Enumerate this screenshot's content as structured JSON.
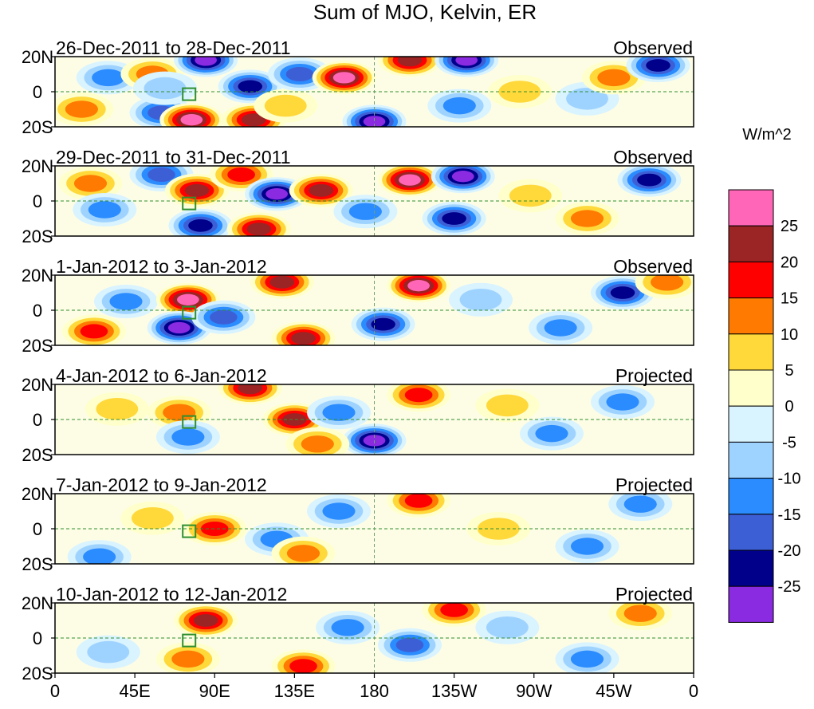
{
  "chart_data": {
    "type": "heatmap",
    "title": "Sum of MJO, Kelvin, ER",
    "colorbar": {
      "units": "W/m^2",
      "levels": [
        25,
        20,
        15,
        10,
        5,
        0,
        -5,
        -10,
        -15,
        -20,
        -25
      ],
      "level_labels": [
        "25",
        "20",
        "15",
        "10",
        "5",
        "0",
        "-5",
        "-10",
        "-15",
        "-20",
        "-25"
      ],
      "colors": [
        "#ff66b8",
        "#9b2424",
        "#ff0000",
        "#ff7a00",
        "#ffd83a",
        "#ffffcc",
        "#d9f3ff",
        "#9fd3ff",
        "#2b8cff",
        "#3d5fd6",
        "#00008b",
        "#8a2be2"
      ]
    },
    "x_axis": {
      "tick_labels": [
        "0",
        "45E",
        "90E",
        "135E",
        "180",
        "135W",
        "90W",
        "45W",
        "0"
      ],
      "range_deg_east": [
        0,
        360
      ]
    },
    "y_axis": {
      "tick_labels": [
        "20N",
        "0",
        "20S"
      ],
      "range_deg": [
        -20,
        20
      ]
    },
    "panels": [
      {
        "period": "26-Dec-2011 to 28-Dec-2011",
        "status": "Observed",
        "anomalies": [
          {
            "lon": 15,
            "lat": -10,
            "value": 12
          },
          {
            "lon": 30,
            "lat": 8,
            "value": -10
          },
          {
            "lon": 55,
            "lat": 10,
            "value": 14
          },
          {
            "lon": 60,
            "lat": -12,
            "value": -15
          },
          {
            "lon": 62,
            "lat": 2,
            "value": -6
          },
          {
            "lon": 77,
            "lat": -16,
            "value": 25
          },
          {
            "lon": 85,
            "lat": 18,
            "value": -26
          },
          {
            "lon": 110,
            "lat": 3,
            "value": -22
          },
          {
            "lon": 112,
            "lat": -16,
            "value": 22
          },
          {
            "lon": 130,
            "lat": -8,
            "value": 8
          },
          {
            "lon": 138,
            "lat": 10,
            "value": -18
          },
          {
            "lon": 163,
            "lat": 8,
            "value": 26
          },
          {
            "lon": 180,
            "lat": -17,
            "value": -26
          },
          {
            "lon": 200,
            "lat": 18,
            "value": 21
          },
          {
            "lon": 232,
            "lat": 18,
            "value": -27
          },
          {
            "lon": 228,
            "lat": -8,
            "value": -14
          },
          {
            "lon": 262,
            "lat": 0,
            "value": 7
          },
          {
            "lon": 300,
            "lat": -4,
            "value": -8
          },
          {
            "lon": 315,
            "lat": 8,
            "value": 14
          },
          {
            "lon": 340,
            "lat": 15,
            "value": -20
          }
        ]
      },
      {
        "period": "29-Dec-2011 to 31-Dec-2011",
        "status": "Observed",
        "anomalies": [
          {
            "lon": 20,
            "lat": 10,
            "value": 12
          },
          {
            "lon": 28,
            "lat": -5,
            "value": -12
          },
          {
            "lon": 60,
            "lat": 15,
            "value": -18
          },
          {
            "lon": 80,
            "lat": 6,
            "value": 21
          },
          {
            "lon": 82,
            "lat": -14,
            "value": -24
          },
          {
            "lon": 105,
            "lat": 15,
            "value": 16
          },
          {
            "lon": 115,
            "lat": -16,
            "value": 24
          },
          {
            "lon": 125,
            "lat": 4,
            "value": -27
          },
          {
            "lon": 150,
            "lat": 6,
            "value": 21
          },
          {
            "lon": 175,
            "lat": -6,
            "value": -14
          },
          {
            "lon": 200,
            "lat": 12,
            "value": 26
          },
          {
            "lon": 230,
            "lat": 14,
            "value": -28
          },
          {
            "lon": 225,
            "lat": -10,
            "value": -22
          },
          {
            "lon": 268,
            "lat": 3,
            "value": 6
          },
          {
            "lon": 300,
            "lat": -10,
            "value": 12
          },
          {
            "lon": 335,
            "lat": 12,
            "value": -22
          }
        ]
      },
      {
        "period": "1-Jan-2012 to 3-Jan-2012",
        "status": "Observed",
        "anomalies": [
          {
            "lon": 22,
            "lat": -12,
            "value": 18
          },
          {
            "lon": 40,
            "lat": 5,
            "value": -12
          },
          {
            "lon": 75,
            "lat": 6,
            "value": 26
          },
          {
            "lon": 70,
            "lat": -10,
            "value": -26
          },
          {
            "lon": 95,
            "lat": -4,
            "value": -18
          },
          {
            "lon": 128,
            "lat": 16,
            "value": 20
          },
          {
            "lon": 140,
            "lat": -16,
            "value": 22
          },
          {
            "lon": 185,
            "lat": -8,
            "value": -24
          },
          {
            "lon": 205,
            "lat": 14,
            "value": 26
          },
          {
            "lon": 240,
            "lat": 6,
            "value": -8
          },
          {
            "lon": 285,
            "lat": -10,
            "value": -14
          },
          {
            "lon": 320,
            "lat": 10,
            "value": -20
          },
          {
            "lon": 345,
            "lat": 16,
            "value": 12
          }
        ]
      },
      {
        "period": "4-Jan-2012 to 6-Jan-2012",
        "status": "Projected",
        "anomalies": [
          {
            "lon": 35,
            "lat": 6,
            "value": 8
          },
          {
            "lon": 70,
            "lat": 4,
            "value": 14
          },
          {
            "lon": 75,
            "lat": -10,
            "value": -14
          },
          {
            "lon": 110,
            "lat": 18,
            "value": 20
          },
          {
            "lon": 135,
            "lat": 0,
            "value": 22
          },
          {
            "lon": 160,
            "lat": 4,
            "value": -14
          },
          {
            "lon": 180,
            "lat": -12,
            "value": -25
          },
          {
            "lon": 148,
            "lat": -14,
            "value": 14
          },
          {
            "lon": 205,
            "lat": 14,
            "value": 16
          },
          {
            "lon": 255,
            "lat": 8,
            "value": 6
          },
          {
            "lon": 280,
            "lat": -8,
            "value": -10
          },
          {
            "lon": 320,
            "lat": 10,
            "value": -12
          }
        ]
      },
      {
        "period": "7-Jan-2012 to 9-Jan-2012",
        "status": "Projected",
        "anomalies": [
          {
            "lon": 25,
            "lat": -16,
            "value": -14
          },
          {
            "lon": 55,
            "lat": 6,
            "value": 8
          },
          {
            "lon": 90,
            "lat": 0,
            "value": 16
          },
          {
            "lon": 125,
            "lat": -6,
            "value": -12
          },
          {
            "lon": 140,
            "lat": -14,
            "value": 12
          },
          {
            "lon": 160,
            "lat": 10,
            "value": -10
          },
          {
            "lon": 205,
            "lat": 16,
            "value": 16
          },
          {
            "lon": 250,
            "lat": 0,
            "value": 6
          },
          {
            "lon": 300,
            "lat": -10,
            "value": -10
          },
          {
            "lon": 330,
            "lat": 14,
            "value": -12
          }
        ]
      },
      {
        "period": "10-Jan-2012 to 12-Jan-2012",
        "status": "Projected",
        "anomalies": [
          {
            "lon": 30,
            "lat": -8,
            "value": -8
          },
          {
            "lon": 85,
            "lat": 10,
            "value": 24
          },
          {
            "lon": 75,
            "lat": -12,
            "value": 10
          },
          {
            "lon": 140,
            "lat": -16,
            "value": 18
          },
          {
            "lon": 165,
            "lat": 6,
            "value": -12
          },
          {
            "lon": 200,
            "lat": -4,
            "value": -16
          },
          {
            "lon": 225,
            "lat": 16,
            "value": 18
          },
          {
            "lon": 255,
            "lat": 6,
            "value": -8
          },
          {
            "lon": 300,
            "lat": -12,
            "value": -14
          },
          {
            "lon": 330,
            "lat": 14,
            "value": 10
          }
        ]
      }
    ]
  }
}
